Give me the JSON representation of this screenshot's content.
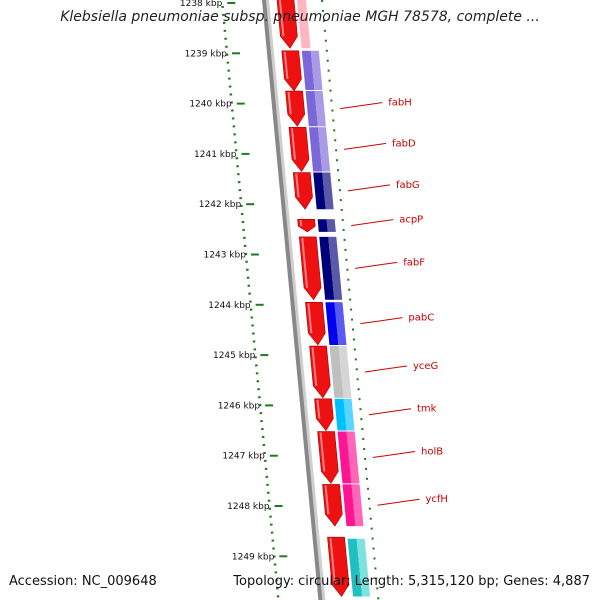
{
  "title": "Klebsiella pneumoniae subsp. pneumoniae MGH 78578, complete ...",
  "colors": {
    "ruler": "#1f7a1f",
    "label": "#cc0000",
    "tick_text": "#111111",
    "forward_cds": "#ee1111",
    "backbone": "#888888"
  },
  "ruler": {
    "unit": "kbp",
    "ticks": [
      {
        "value": 1238,
        "label": "1238 kbp"
      },
      {
        "value": 1239,
        "label": "1239 kbp"
      },
      {
        "value": 1240,
        "label": "1240 kbp"
      },
      {
        "value": 1241,
        "label": "1241 kbp"
      },
      {
        "value": 1242,
        "label": "1242 kbp"
      },
      {
        "value": 1243,
        "label": "1243 kbp"
      },
      {
        "value": 1244,
        "label": "1244 kbp"
      },
      {
        "value": 1245,
        "label": "1245 kbp"
      },
      {
        "value": 1246,
        "label": "1246 kbp"
      },
      {
        "value": 1247,
        "label": "1247 kbp"
      },
      {
        "value": 1248,
        "label": "1248 kbp"
      },
      {
        "value": 1249,
        "label": "1249 kbp"
      }
    ]
  },
  "genes": [
    {
      "name": "fabH",
      "start": 1239.75,
      "end": 1240.45,
      "color": "#7b68d8"
    },
    {
      "name": "fabD",
      "start": 1240.47,
      "end": 1241.35,
      "color": "#7b68d8"
    },
    {
      "name": "fabG",
      "start": 1241.37,
      "end": 1242.1,
      "color": "#00007a"
    },
    {
      "name": "acpP",
      "start": 1242.3,
      "end": 1242.55,
      "color": "#00007a"
    },
    {
      "name": "fabF",
      "start": 1242.65,
      "end": 1243.9,
      "color": "#00007a"
    },
    {
      "name": "pabC",
      "start": 1243.95,
      "end": 1244.8,
      "color": "#0000ee"
    },
    {
      "name": "yceG",
      "start": 1244.82,
      "end": 1245.85,
      "color": "#bfbfbf"
    },
    {
      "name": "tmk",
      "start": 1245.87,
      "end": 1246.5,
      "color": "#00bfff"
    },
    {
      "name": "holB",
      "start": 1246.52,
      "end": 1247.55,
      "color": "#ff1493"
    },
    {
      "name": "ycfH",
      "start": 1247.57,
      "end": 1248.4,
      "color": "#ff1493"
    }
  ],
  "footer": {
    "accession": "Accession: NC_009648",
    "topology_key": "Topology:",
    "topology": "circular;",
    "length": "Length: 5,315,120 bp;",
    "genes": "Genes: 4,887"
  }
}
